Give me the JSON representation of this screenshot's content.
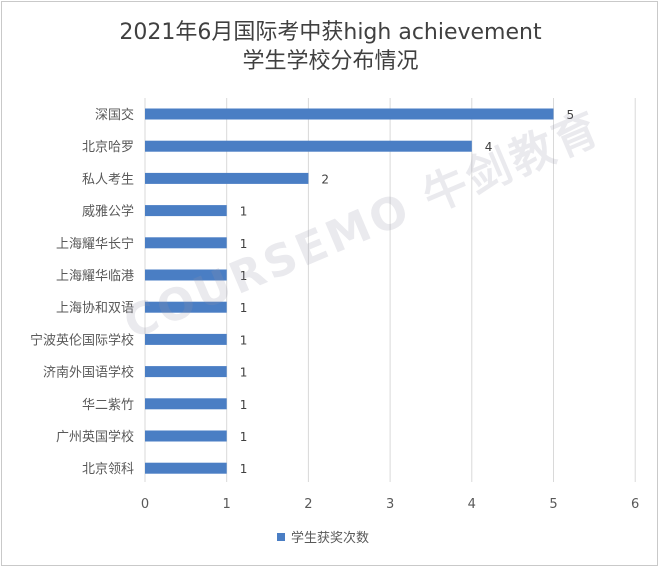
{
  "chart_data": {
    "type": "bar",
    "orientation": "horizontal",
    "title_line1": "2021年6月国际考中获high achievement",
    "title_line2": "学生学校分布情况",
    "categories": [
      "深国交",
      "北京哈罗",
      "私人考生",
      "威雅公学",
      "上海耀华长宁",
      "上海耀华临港",
      "上海协和双语",
      "宁波英伦国际学校",
      "济南外国语学校",
      "华二紫竹",
      "广州英国学校",
      "北京领科"
    ],
    "series": [
      {
        "name": "学生获奖次数",
        "values": [
          5,
          4,
          2,
          1,
          1,
          1,
          1,
          1,
          1,
          1,
          1,
          1
        ]
      }
    ],
    "xlim": [
      0,
      6
    ],
    "xticks": [
      "0",
      "1",
      "2",
      "3",
      "4",
      "5",
      "6"
    ],
    "grid": "vertical",
    "legend": "bottom",
    "bar_color": "#4a7ec4"
  },
  "watermark": "COURSEMO 牛剑教育"
}
